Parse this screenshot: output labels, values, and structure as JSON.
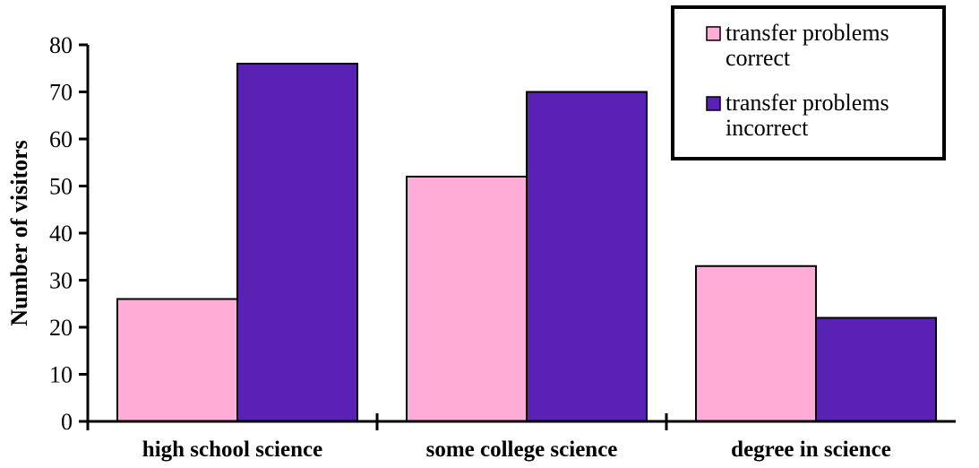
{
  "chart_data": {
    "type": "bar",
    "title": "",
    "xlabel": "",
    "ylabel": "Number of visitors",
    "ylim": [
      0,
      80
    ],
    "yticks": [
      0,
      10,
      20,
      30,
      40,
      50,
      60,
      70,
      80
    ],
    "grid": false,
    "legend_position": "top-right",
    "categories": [
      "high school science",
      "some college science",
      "degree in science"
    ],
    "series": [
      {
        "name": "transfer problems correct",
        "legend_lines": [
          "transfer problems",
          "correct"
        ],
        "color": "#FFADD6",
        "values": [
          26,
          52,
          33
        ]
      },
      {
        "name": "transfer problems incorrect",
        "legend_lines": [
          "transfer problems",
          "incorrect"
        ],
        "color": "#5A22B4",
        "values": [
          76,
          70,
          22
        ]
      }
    ]
  }
}
